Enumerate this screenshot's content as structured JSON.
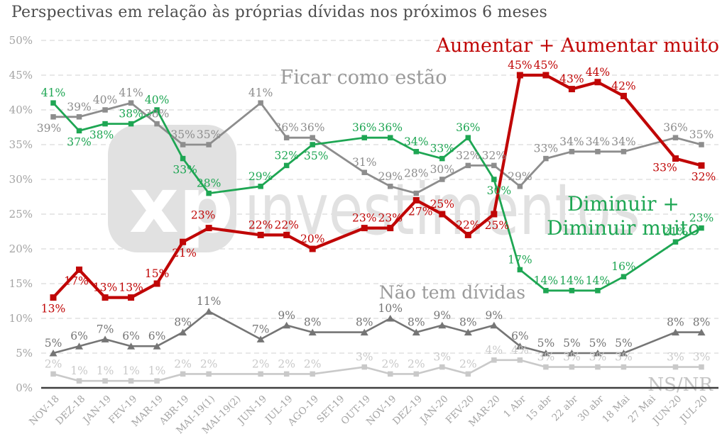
{
  "title": "Perspectivas em relação às próprias dívidas nos próximos 6 meses",
  "watermark": {
    "logo_text": "xp",
    "name": "investimentos"
  },
  "chart_data": {
    "type": "line",
    "title": "Perspectivas em relação às próprias dívidas nos próximos 6 meses",
    "xlabel": "",
    "ylabel": "",
    "ylim": [
      0,
      50
    ],
    "y_tick_step": 5,
    "y_tick_labels": [
      "0%",
      "5%",
      "10%",
      "15%",
      "20%",
      "25%",
      "30%",
      "35%",
      "40%",
      "45%",
      "50%"
    ],
    "grid": "horizontal-dashed",
    "legend_position": "inline-annotations",
    "categories": [
      "NOV-18",
      "DEZ-18",
      "JAN-19",
      "FEV-19",
      "MAR-19",
      "ABR-19",
      "MAI-19(1)",
      "MAI-19(2)",
      "JUN-19",
      "JUL-19",
      "AGO-19",
      "SET-19",
      "OUT-19",
      "NOV-19",
      "DEZ-19",
      "JAN-20",
      "FEV-20",
      "MAR-20",
      "1 Abr",
      "15 abr",
      "22 abr",
      "30 abr",
      "18 Mai",
      "27 Mai",
      "JUN-20",
      "JUL-20"
    ],
    "series": [
      {
        "name": "Ficar como estão",
        "color": "#8d8d8d",
        "marker": "square",
        "values": [
          39,
          39,
          40,
          41,
          38,
          35,
          35,
          null,
          41,
          36,
          36,
          null,
          31,
          29,
          28,
          30,
          32,
          32,
          29,
          33,
          34,
          34,
          34,
          null,
          36,
          35
        ]
      },
      {
        "name": "Aumentar + Aumentar muito",
        "color": "#c00606",
        "marker": "square",
        "values": [
          13,
          17,
          13,
          13,
          15,
          21,
          23,
          null,
          22,
          22,
          20,
          null,
          23,
          23,
          27,
          25,
          22,
          25,
          45,
          45,
          43,
          44,
          42,
          null,
          33,
          32
        ]
      },
      {
        "name": "Diminuir + Diminuir muito",
        "color": "#1ea653",
        "marker": "square",
        "values": [
          41,
          37,
          38,
          38,
          40,
          33,
          28,
          null,
          29,
          32,
          35,
          null,
          36,
          36,
          34,
          33,
          36,
          30,
          17,
          14,
          14,
          14,
          16,
          null,
          21,
          23
        ]
      },
      {
        "name": "Não tem dívidas",
        "color": "#757575",
        "marker": "triangle",
        "values": [
          5,
          6,
          7,
          6,
          6,
          8,
          11,
          null,
          7,
          9,
          8,
          null,
          8,
          10,
          8,
          9,
          8,
          9,
          6,
          5,
          5,
          5,
          5,
          null,
          8,
          8
        ]
      },
      {
        "name": "NS/NR",
        "color": "#c9c9c9",
        "marker": "square",
        "values": [
          2,
          1,
          1,
          1,
          1,
          2,
          2,
          null,
          2,
          2,
          2,
          null,
          3,
          2,
          2,
          3,
          2,
          4,
          4,
          3,
          3,
          3,
          3,
          null,
          3,
          3
        ]
      }
    ],
    "annotations": [
      {
        "text": "Ficar como estão",
        "color": "#9a9a9a"
      },
      {
        "text": "Aumentar + Aumentar muito",
        "color": "#c00606"
      },
      {
        "text": "Diminuir +",
        "color": "#1ea653"
      },
      {
        "text": "Diminuir muito",
        "color": "#1ea653"
      },
      {
        "text": "Não tem dívidas",
        "color": "#9a9a9a"
      },
      {
        "text": "NS/NR",
        "color": "#c4c4c4"
      }
    ]
  }
}
